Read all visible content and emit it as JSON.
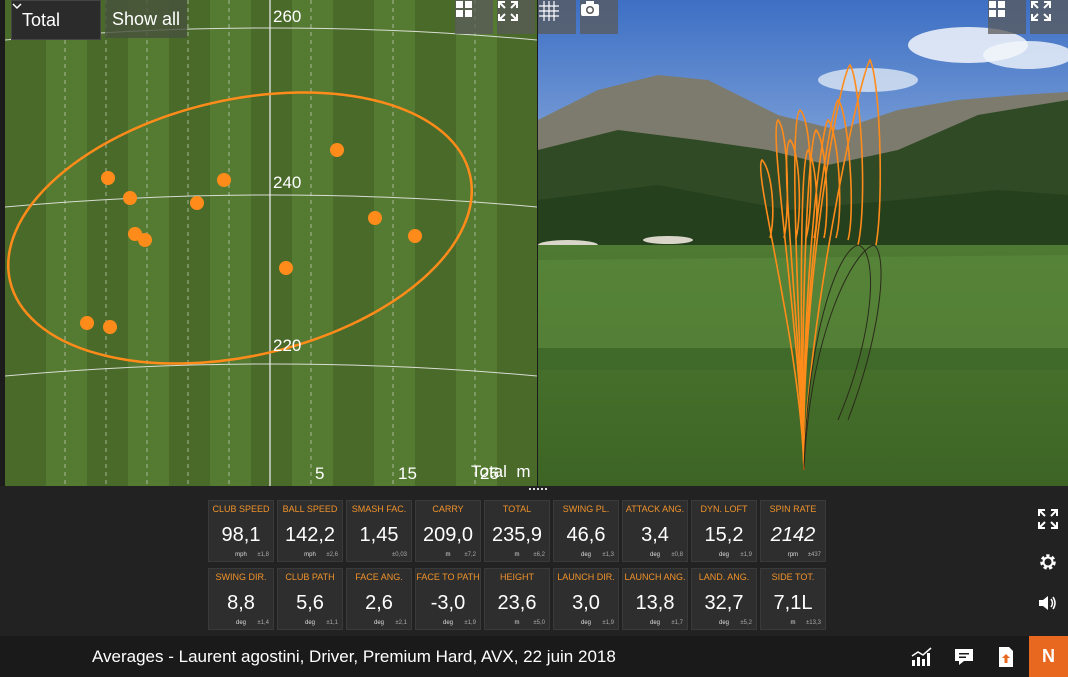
{
  "dispersion": {
    "select_value": "Total",
    "show_all_label": "Show all",
    "y_labels": [
      "260",
      "240",
      "220"
    ],
    "x_labels": [
      "5",
      "15",
      "25"
    ],
    "axis_caption": "Total  m"
  },
  "shots_count": 13,
  "metrics": {
    "row1": [
      {
        "label": "CLUB SPEED",
        "value": "98,1",
        "unit": "mph",
        "dev": "±1,8"
      },
      {
        "label": "BALL SPEED",
        "value": "142,2",
        "unit": "mph",
        "dev": "±2,6"
      },
      {
        "label": "SMASH FAC.",
        "value": "1,45",
        "unit": "",
        "dev": "±0,03"
      },
      {
        "label": "CARRY",
        "value": "209,0",
        "unit": "m",
        "dev": "±7,2"
      },
      {
        "label": "TOTAL",
        "value": "235,9",
        "unit": "m",
        "dev": "±6,2"
      },
      {
        "label": "SWING PL.",
        "value": "46,6",
        "unit": "deg",
        "dev": "±1,3"
      },
      {
        "label": "ATTACK ANG.",
        "value": "3,4",
        "unit": "deg",
        "dev": "±0,8"
      },
      {
        "label": "DYN. LOFT",
        "value": "15,2",
        "unit": "deg",
        "dev": "±1,9"
      },
      {
        "label": "SPIN RATE",
        "value": "2142",
        "unit": "rpm",
        "dev": "±437"
      }
    ],
    "row2": [
      {
        "label": "SWING DIR.",
        "value": "8,8",
        "unit": "deg",
        "dev": "±1,4"
      },
      {
        "label": "CLUB PATH",
        "value": "5,6",
        "unit": "deg",
        "dev": "±1,1"
      },
      {
        "label": "FACE ANG.",
        "value": "2,6",
        "unit": "deg",
        "dev": "±2,1"
      },
      {
        "label": "FACE TO PATH",
        "value": "-3,0",
        "unit": "deg",
        "dev": "±1,9"
      },
      {
        "label": "HEIGHT",
        "value": "23,6",
        "unit": "m",
        "dev": "±5,0"
      },
      {
        "label": "LAUNCH DIR.",
        "value": "3,0",
        "unit": "deg",
        "dev": "±1,9"
      },
      {
        "label": "LAUNCH ANG.",
        "value": "13,8",
        "unit": "deg",
        "dev": "±1,7"
      },
      {
        "label": "LAND. ANG.",
        "value": "32,7",
        "unit": "deg",
        "dev": "±5,2"
      },
      {
        "label": "SIDE TOT.",
        "value": "7,1L",
        "unit": "m",
        "dev": "±13,3"
      }
    ]
  },
  "footer": {
    "caption": "Averages - Laurent agostini, Driver, Premium Hard, AVX, 22 juin 2018",
    "brand_button": "N"
  },
  "icons": [
    "chevron-down-icon",
    "grid-layout-icon",
    "expand-icon",
    "grid-overlay-icon",
    "camera-icon",
    "settings-icon",
    "volume-icon",
    "chart-icon",
    "comment-icon",
    "export-icon"
  ],
  "colors": {
    "accent": "#f0932b",
    "shot": "#ff8c1a",
    "brand": "#e8681f"
  }
}
